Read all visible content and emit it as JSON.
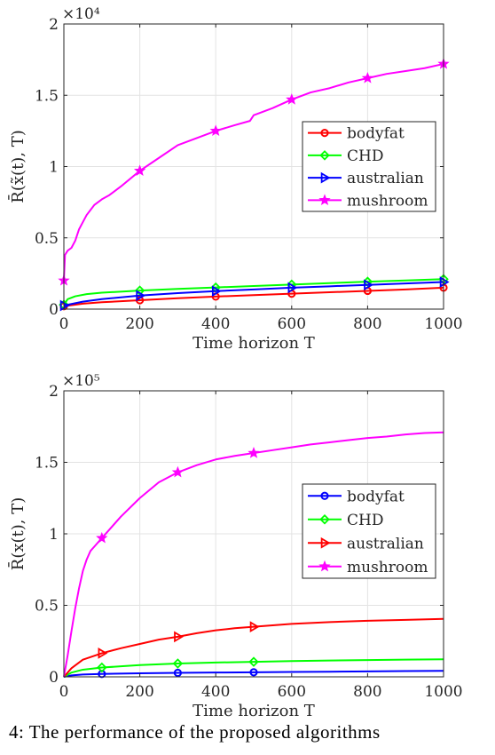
{
  "caption": "4: The performance of the proposed algorithms",
  "chart_data": [
    {
      "type": "line",
      "title": "",
      "xlabel": "Time horizon T",
      "ylabel": "R̄(x̃(t), T)",
      "xlim": [
        0,
        1000
      ],
      "ylim": [
        0,
        20000
      ],
      "xticks": [
        "0",
        "200",
        "400",
        "600",
        "800",
        "1000"
      ],
      "yticks": [
        "0",
        "0.5",
        "1",
        "1.5",
        "2"
      ],
      "y_exponent": "×10⁴",
      "grid": true,
      "legend": "right",
      "series": [
        {
          "name": "bodyfat",
          "color": "#ff0000",
          "marker": "circle",
          "x": [
            0,
            50,
            100,
            200,
            300,
            400,
            500,
            600,
            700,
            800,
            900,
            1000
          ],
          "y": [
            200,
            380,
            480,
            620,
            760,
            880,
            980,
            1080,
            1180,
            1280,
            1380,
            1500
          ]
        },
        {
          "name": "CHD",
          "color": "#00ff00",
          "marker": "diamond",
          "x": [
            0,
            10,
            30,
            60,
            100,
            200,
            300,
            400,
            500,
            600,
            700,
            800,
            900,
            1000
          ],
          "y": [
            300,
            700,
            900,
            1050,
            1150,
            1300,
            1420,
            1520,
            1620,
            1720,
            1820,
            1920,
            2010,
            2100
          ]
        },
        {
          "name": "australian",
          "color": "#0000ff",
          "marker": "triangle-right",
          "x": [
            0,
            50,
            100,
            200,
            300,
            400,
            500,
            600,
            700,
            800,
            900,
            1000
          ],
          "y": [
            250,
            520,
            700,
            950,
            1120,
            1260,
            1380,
            1500,
            1600,
            1700,
            1800,
            1900
          ]
        },
        {
          "name": "mushroom",
          "color": "#ff00ff",
          "marker": "star",
          "x": [
            0,
            3,
            10,
            20,
            30,
            40,
            50,
            60,
            80,
            100,
            120,
            150,
            200,
            250,
            300,
            350,
            400,
            450,
            490,
            500,
            550,
            600,
            650,
            700,
            750,
            800,
            850,
            900,
            950,
            1000
          ],
          "y": [
            2000,
            3800,
            4100,
            4300,
            4800,
            5600,
            6100,
            6600,
            7300,
            7700,
            8000,
            8600,
            9700,
            10600,
            11500,
            12000,
            12500,
            12900,
            13200,
            13600,
            14100,
            14700,
            15200,
            15500,
            15900,
            16200,
            16500,
            16700,
            16900,
            17200
          ]
        }
      ],
      "marker_x": [
        0,
        200,
        400,
        600,
        800,
        1000
      ]
    },
    {
      "type": "line",
      "title": "",
      "xlabel": "Time horizon T",
      "ylabel": "R̄(x(t), T)",
      "xlim": [
        0,
        1000
      ],
      "ylim": [
        0,
        200000
      ],
      "xticks": [
        "0",
        "200",
        "400",
        "600",
        "800",
        "1000"
      ],
      "yticks": [
        "0",
        "0.5",
        "1",
        "1.5",
        "2"
      ],
      "y_exponent": "×10⁵",
      "grid": true,
      "legend": "right",
      "series": [
        {
          "name": "bodyfat",
          "color": "#0000ff",
          "marker": "circle",
          "x": [
            0,
            20,
            50,
            100,
            200,
            300,
            400,
            500,
            600,
            700,
            800,
            900,
            1000
          ],
          "y": [
            0,
            1000,
            1600,
            2000,
            2500,
            2800,
            3000,
            3200,
            3400,
            3600,
            3800,
            4000,
            4200
          ]
        },
        {
          "name": "CHD",
          "color": "#00ff00",
          "marker": "diamond",
          "x": [
            0,
            20,
            50,
            100,
            200,
            300,
            400,
            500,
            600,
            700,
            800,
            900,
            1000
          ],
          "y": [
            0,
            3000,
            5000,
            6500,
            8200,
            9300,
            10000,
            10500,
            11000,
            11400,
            11700,
            12000,
            12300
          ]
        },
        {
          "name": "australian",
          "color": "#ff0000",
          "marker": "triangle-right",
          "x": [
            0,
            20,
            50,
            100,
            150,
            200,
            250,
            300,
            350,
            400,
            450,
            500,
            600,
            700,
            800,
            900,
            1000
          ],
          "y": [
            0,
            6000,
            12000,
            16500,
            20000,
            23000,
            26000,
            28000,
            30500,
            32500,
            34000,
            35000,
            37000,
            38300,
            39200,
            39800,
            40500
          ]
        },
        {
          "name": "mushroom",
          "color": "#ff00ff",
          "marker": "star",
          "x": [
            0,
            10,
            20,
            30,
            40,
            50,
            60,
            70,
            80,
            100,
            120,
            150,
            200,
            250,
            300,
            350,
            400,
            450,
            500,
            550,
            600,
            650,
            700,
            750,
            800,
            850,
            900,
            950,
            1000
          ],
          "y": [
            0,
            15000,
            32000,
            48000,
            62000,
            74000,
            82000,
            88000,
            91000,
            97000,
            103000,
            112000,
            125000,
            136000,
            143000,
            148000,
            152000,
            154500,
            156500,
            158500,
            160500,
            162500,
            164000,
            165500,
            167000,
            168000,
            169500,
            170500,
            171000
          ]
        }
      ],
      "marker_x": [
        100,
        300,
        500
      ]
    }
  ]
}
